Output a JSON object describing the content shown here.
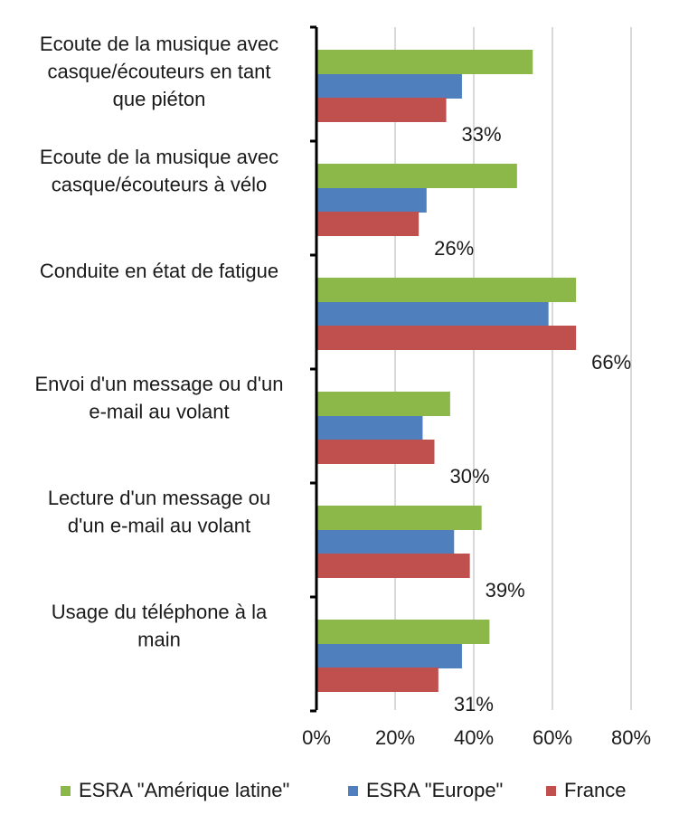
{
  "chart_data": {
    "type": "bar",
    "orientation": "horizontal",
    "categories": [
      [
        "Ecoute de la musique avec",
        "casque/écouteurs en tant",
        "que piéton"
      ],
      [
        "Ecoute de la musique avec",
        "casque/écouteurs à vélo"
      ],
      [
        "Conduite en état de fatigue"
      ],
      [
        "Envoi d'un message ou d'un",
        "e-mail au volant"
      ],
      [
        "Lecture d'un message ou",
        "d'un e-mail au volant"
      ],
      [
        "Usage du téléphone à la",
        "main"
      ]
    ],
    "series": [
      {
        "name": "ESRA \"Amérique latine\"",
        "color": "#8cb84a",
        "values": [
          55,
          51,
          66,
          34,
          42,
          44
        ]
      },
      {
        "name": "ESRA \"Europe\"",
        "color": "#4f80bd",
        "values": [
          37,
          28,
          59,
          27,
          35,
          37
        ]
      },
      {
        "name": "France",
        "color": "#c0504d",
        "values": [
          33,
          26,
          66,
          30,
          39,
          31
        ]
      }
    ],
    "data_labels": [
      "33%",
      "26%",
      "66%",
      "30%",
      "39%",
      "31%"
    ],
    "data_labels_series": "France",
    "xlim": [
      0,
      80
    ],
    "x_ticks": [
      "0%",
      "20%",
      "40%",
      "60%",
      "80%"
    ],
    "grid": true,
    "legend_position": "bottom"
  }
}
